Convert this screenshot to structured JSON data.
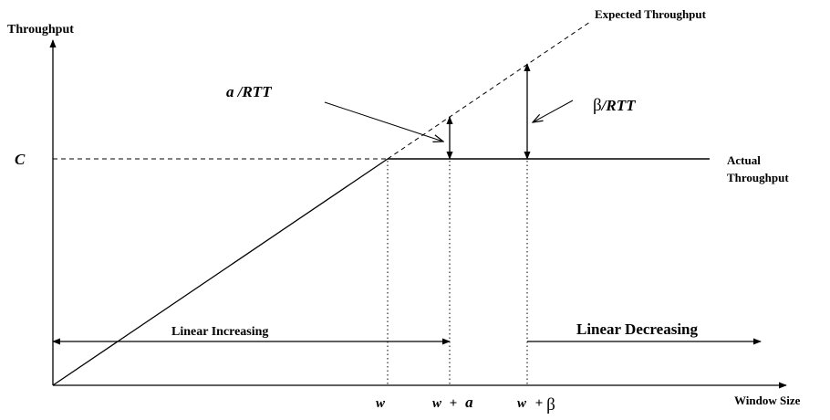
{
  "axes": {
    "y_label": "Throughput",
    "x_label": "Window Size",
    "c_label": "C"
  },
  "curves": {
    "expected_label": "Expected Throughput",
    "actual_label_line1": "Actual",
    "actual_label_line2": "Throughput"
  },
  "annotations": {
    "alpha_rtt": "a /RTT",
    "beta_rtt_symbol": "β",
    "beta_rtt_suffix": "/RTT"
  },
  "ticks": {
    "w": "w",
    "w_plus_a_w": "w",
    "w_plus_a_plus": "+",
    "w_plus_a_a": "a",
    "w_plus_b_w": "w",
    "w_plus_b_plus": "+",
    "w_plus_b_beta": "β"
  },
  "regions": {
    "linear_increasing": "Linear Increasing",
    "linear_decreasing": "Linear Decreasing"
  }
}
